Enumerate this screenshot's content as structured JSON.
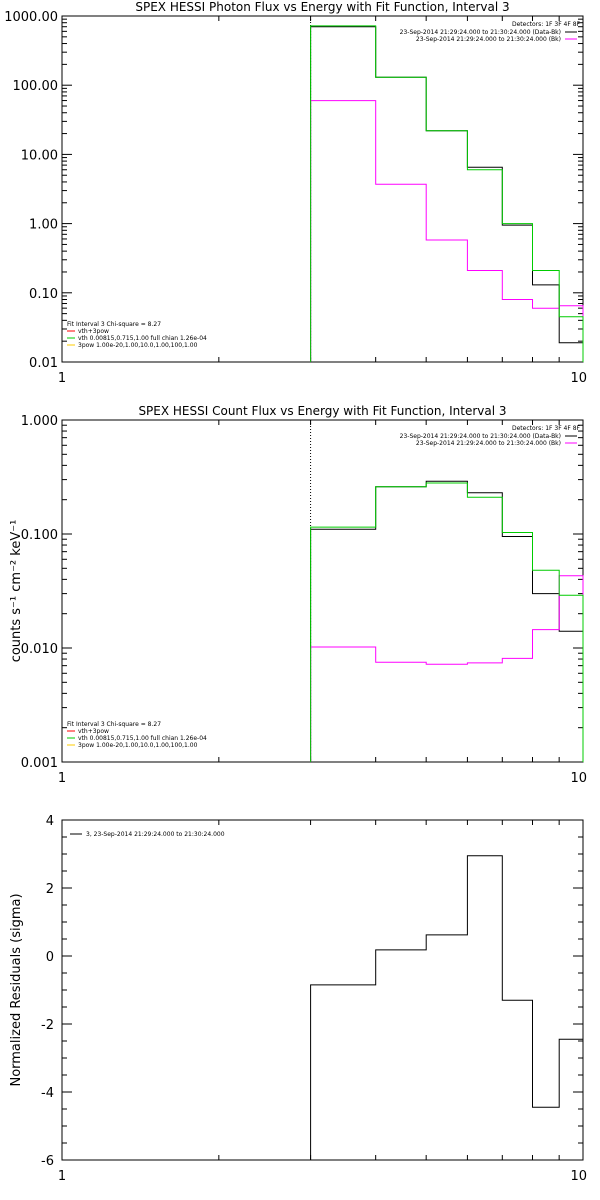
{
  "chart_data": [
    {
      "type": "line",
      "title": "SPEX HESSI Photon Flux vs Energy with Fit Function, Interval 3",
      "xlabel": "",
      "ylabel": "",
      "x_scale": "log",
      "y_scale": "log",
      "xlim": [
        1,
        10
      ],
      "ylim": [
        0.01,
        1000
      ],
      "x_tick_labels": [
        "1",
        "10"
      ],
      "y_tick_labels": [
        "0.01",
        "0.10",
        "1.00",
        "10.00",
        "100.00",
        "1000.00"
      ],
      "detectors": "Detectors: 1F 3F 4F 8F",
      "data_legend": [
        {
          "text": "23-Sep-2014 21:29:24.000 to 21:30:24.000 (Data-Bk)",
          "color": "#000000"
        },
        {
          "text": "23-Sep-2014 21:29:24.000 to 21:30:24.000 (Bk)",
          "color": "#ff00ff"
        }
      ],
      "fit_info": [
        {
          "text": "Fit Interval 3   Chi-square = 8.27",
          "color": "#000000"
        },
        {
          "text": "vth+3pow",
          "color": "#ff0000"
        },
        {
          "text": "vth 0.00815,0.715,1.00  full chian 1.26e-04",
          "color": "#00cc00"
        },
        {
          "text": "3pow 1.00e-20,1.00,10.0,1.00,100,1.00",
          "color": "#ffcc00"
        }
      ],
      "vline_x": 3.0,
      "bin_edges": [
        3.0,
        4.0,
        5.0,
        6.0,
        7.0,
        8.0,
        9.0,
        10.0
      ],
      "series": [
        {
          "name": "Data-Bk",
          "color": "#000000",
          "values": [
            700,
            130,
            22,
            6.5,
            0.95,
            0.13,
            0.019
          ]
        },
        {
          "name": "Bk",
          "color": "#ff00ff",
          "values": [
            60,
            3.7,
            0.58,
            0.21,
            0.08,
            0.06,
            0.065
          ]
        },
        {
          "name": "vth+3pow",
          "color": "#00cc00",
          "values": [
            720,
            130,
            22,
            6.0,
            1.0,
            0.21,
            0.045
          ]
        }
      ]
    },
    {
      "type": "line",
      "title": "SPEX HESSI Count Flux vs Energy with Fit Function, Interval 3",
      "xlabel": "",
      "ylabel": "counts s⁻¹ cm⁻² keV⁻¹",
      "x_scale": "log",
      "y_scale": "log",
      "xlim": [
        1,
        10
      ],
      "ylim": [
        0.001,
        1
      ],
      "x_tick_labels": [
        "1",
        "10"
      ],
      "y_tick_labels": [
        "0.001",
        "0.010",
        "0.100",
        "1.000"
      ],
      "detectors": "Detectors: 1F 3F 4F 8F",
      "data_legend": [
        {
          "text": "23-Sep-2014 21:29:24.000 to 21:30:24.000 (Data-Bk)",
          "color": "#000000"
        },
        {
          "text": "23-Sep-2014 21:29:24.000 to 21:30:24.000 (Bk)",
          "color": "#ff00ff"
        }
      ],
      "fit_info": [
        {
          "text": "Fit Interval 3   Chi-square = 8.27",
          "color": "#000000"
        },
        {
          "text": "vth+3pow",
          "color": "#ff0000"
        },
        {
          "text": "vth 0.00815,0.715,1.00  full chian 1.26e-04",
          "color": "#00cc00"
        },
        {
          "text": "3pow 1.00e-20,1.00,10.0,1.00,100,1.00",
          "color": "#ffcc00"
        }
      ],
      "vline_x": 3.0,
      "bin_edges": [
        3.0,
        4.0,
        5.0,
        6.0,
        7.0,
        8.0,
        9.0,
        10.0
      ],
      "series": [
        {
          "name": "Data-Bk",
          "color": "#000000",
          "values": [
            0.11,
            0.26,
            0.29,
            0.23,
            0.095,
            0.03,
            0.014
          ]
        },
        {
          "name": "Bk",
          "color": "#ff00ff",
          "values": [
            0.0102,
            0.0075,
            0.0072,
            0.0074,
            0.0081,
            0.0145,
            0.043
          ]
        },
        {
          "name": "vth+3pow",
          "color": "#00cc00",
          "values": [
            0.115,
            0.26,
            0.28,
            0.21,
            0.103,
            0.048,
            0.029
          ]
        }
      ]
    },
    {
      "type": "line",
      "title": "",
      "xlabel": "",
      "ylabel": "Normalized Residuals (sigma)",
      "x_scale": "log",
      "y_scale": "linear",
      "xlim": [
        1,
        10
      ],
      "ylim": [
        -6,
        4
      ],
      "x_tick_labels": [
        "1",
        "10"
      ],
      "y_tick_labels": [
        "-6",
        "-4",
        "-2",
        "0",
        "2",
        "4"
      ],
      "legend": [
        {
          "text": "3, 23-Sep-2014 21:29:24.000 to 21:30:24.000",
          "color": "#000000"
        }
      ],
      "bin_edges": [
        3.0,
        4.0,
        5.0,
        6.0,
        7.0,
        8.0,
        9.0,
        10.0
      ],
      "series": [
        {
          "name": "3, 23-Sep-2014 21:29:24.000 to 21:30:24.000",
          "color": "#000000",
          "values": [
            -0.85,
            0.18,
            0.62,
            2.95,
            -1.3,
            -4.45,
            -2.45
          ]
        }
      ]
    }
  ]
}
